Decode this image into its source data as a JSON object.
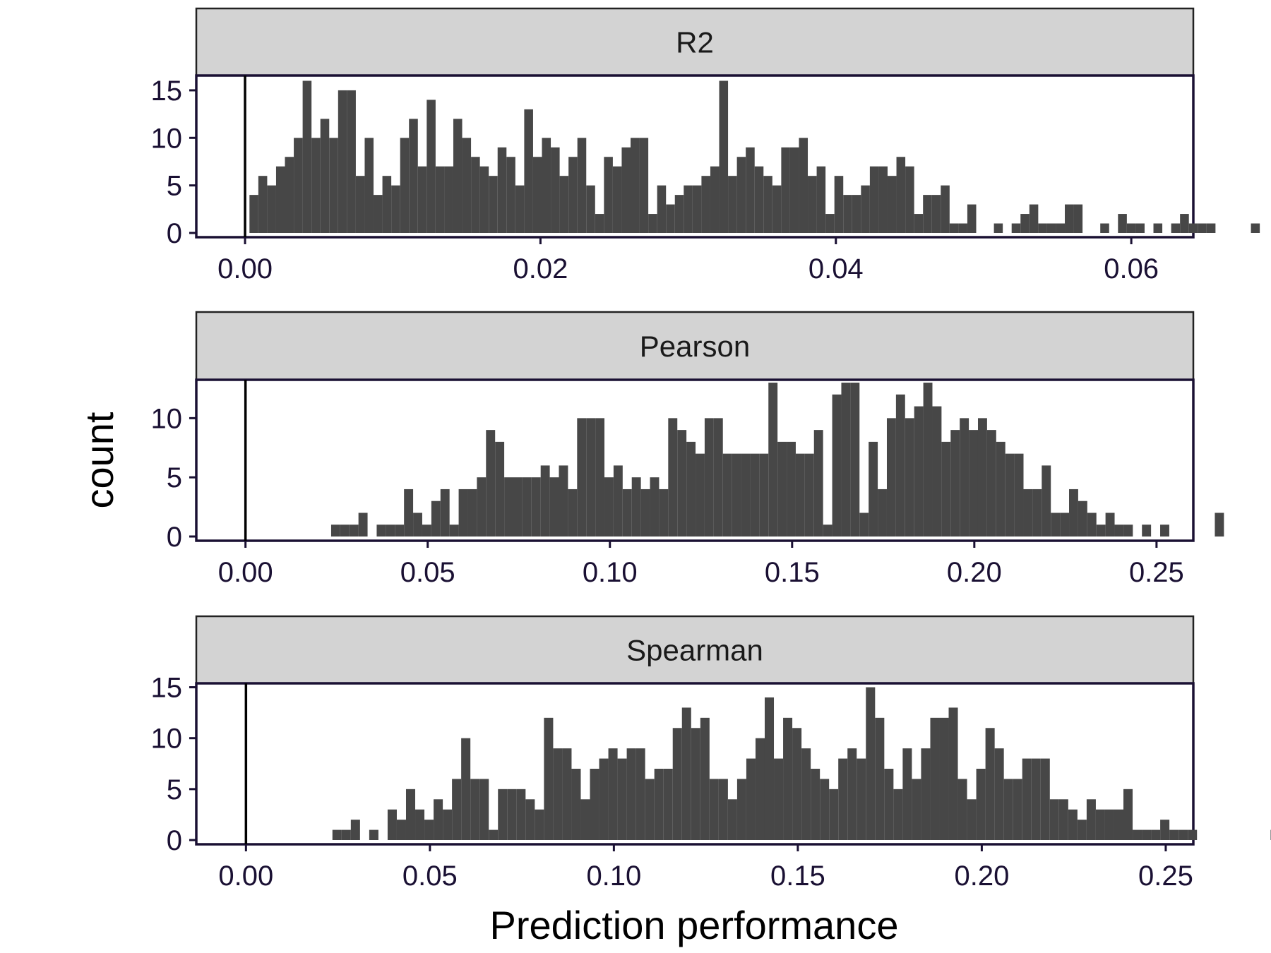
{
  "chart_data": {
    "type": "bar",
    "xlabel": "Prediction performance",
    "ylabel": "count",
    "panels": [
      {
        "title": "R2",
        "xlim": [
          -0.0033,
          0.0642
        ],
        "ylim": [
          0,
          17
        ],
        "xticks": [
          0.0,
          0.02,
          0.04,
          0.06
        ],
        "xtick_labels": [
          "0.00",
          "0.02",
          "0.04",
          "0.06"
        ],
        "yticks": [
          0,
          5,
          10,
          15
        ],
        "bin_start": 0.0003,
        "bin_width": 0.0006,
        "counts": [
          4,
          6,
          5,
          7,
          8,
          10,
          16,
          10,
          12,
          10,
          15,
          15,
          6,
          10,
          4,
          6,
          5,
          10,
          12,
          7,
          14,
          7,
          7,
          12,
          10,
          8,
          7,
          6,
          9,
          8,
          5,
          13,
          8,
          10,
          9,
          6,
          8,
          10,
          5,
          2,
          8,
          7,
          9,
          10,
          10,
          2,
          5,
          3,
          4,
          5,
          5,
          6,
          7,
          16,
          6,
          8,
          9,
          7,
          6,
          5,
          9,
          9,
          10,
          6,
          7,
          2,
          6,
          4,
          4,
          5,
          7,
          7,
          6,
          8,
          7,
          2,
          4,
          4,
          5,
          1,
          1,
          3,
          0,
          0,
          1,
          0,
          1,
          2,
          3,
          1,
          1,
          1,
          3,
          3,
          0,
          0,
          1,
          0,
          2,
          1,
          1,
          0,
          1,
          0,
          1,
          2,
          1,
          1,
          1,
          0,
          0,
          0,
          0,
          1,
          0,
          0,
          1,
          0,
          0,
          0,
          0,
          0,
          0,
          0,
          0,
          0,
          0,
          0,
          0,
          0,
          0,
          0,
          0,
          0,
          0,
          0,
          0,
          0,
          0,
          0,
          1,
          1
        ]
      },
      {
        "title": "Pearson",
        "xlim": [
          -0.0135,
          0.2601
        ],
        "ylim": [
          0,
          13.6
        ],
        "xticks": [
          0.0,
          0.05,
          0.1,
          0.15,
          0.2,
          0.25
        ],
        "xtick_labels": [
          "0.00",
          "0.05",
          "0.10",
          "0.15",
          "0.20",
          "0.25"
        ],
        "yticks": [
          0,
          5,
          10
        ],
        "bin_start": 0.0235,
        "bin_width": 0.0025,
        "counts": [
          1,
          1,
          1,
          2,
          0,
          1,
          1,
          1,
          4,
          2,
          1,
          3,
          4,
          1,
          4,
          4,
          5,
          9,
          8,
          5,
          5,
          5,
          5,
          6,
          5,
          6,
          4,
          10,
          10,
          10,
          5,
          6,
          4,
          5,
          4,
          5,
          4,
          10,
          9,
          8,
          7,
          10,
          10,
          7,
          7,
          7,
          7,
          7,
          13,
          8,
          8,
          7,
          7,
          9,
          1,
          12,
          13,
          13,
          2,
          8,
          4,
          10,
          12,
          10,
          11,
          13,
          11,
          8,
          9,
          10,
          9,
          10,
          9,
          8,
          7,
          7,
          4,
          4,
          6,
          2,
          2,
          4,
          3,
          2,
          1,
          2,
          1,
          1,
          0,
          1,
          0,
          1,
          0,
          0,
          0,
          0,
          0,
          2,
          0,
          0
        ]
      },
      {
        "title": "Spearman",
        "xlim": [
          -0.0135,
          0.2575
        ],
        "ylim": [
          0,
          15.8
        ],
        "xticks": [
          0.0,
          0.05,
          0.1,
          0.15,
          0.2,
          0.25
        ],
        "xtick_labels": [
          "0.00",
          "0.05",
          "0.10",
          "0.15",
          "0.20",
          "0.25"
        ],
        "yticks": [
          0,
          5,
          10,
          15
        ],
        "bin_start": 0.0235,
        "bin_width": 0.0025,
        "counts": [
          1,
          1,
          2,
          0,
          1,
          0,
          3,
          2,
          5,
          3,
          2,
          4,
          3,
          6,
          10,
          6,
          6,
          1,
          5,
          5,
          5,
          4,
          3,
          12,
          9,
          9,
          7,
          4,
          7,
          8,
          9,
          8,
          9,
          9,
          6,
          7,
          7,
          11,
          13,
          11,
          12,
          6,
          6,
          4,
          6,
          8,
          10,
          14,
          8,
          12,
          11,
          9,
          7,
          6,
          5,
          8,
          9,
          8,
          15,
          12,
          7,
          5,
          9,
          6,
          9,
          12,
          12,
          13,
          6,
          4,
          7,
          11,
          9,
          6,
          6,
          8,
          8,
          8,
          4,
          4,
          3,
          2,
          4,
          3,
          3,
          3,
          5,
          1,
          1,
          1,
          2,
          1,
          1,
          1,
          0,
          0,
          0,
          0,
          0,
          0,
          0,
          0,
          1
        ]
      }
    ]
  }
}
